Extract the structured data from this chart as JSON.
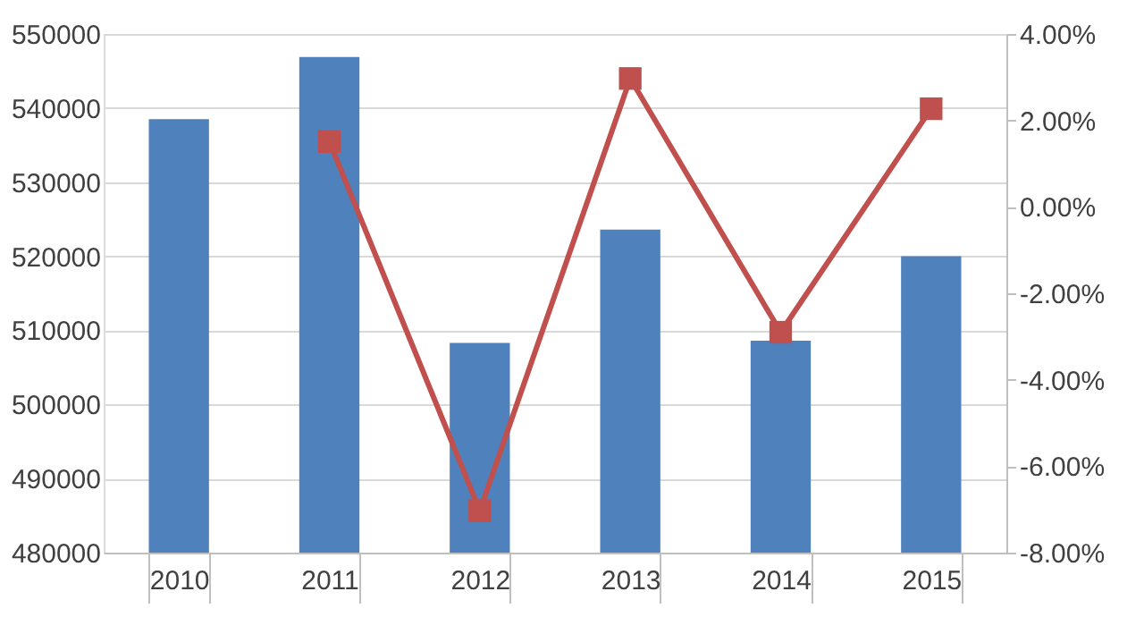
{
  "chart_data": {
    "type": "bar",
    "categories": [
      "2010",
      "2011",
      "2012",
      "2013",
      "2014",
      "2015"
    ],
    "series": [
      {
        "color": "#4f81bd",
        "values": [
          538500,
          546900,
          508300,
          523600,
          508600,
          520000
        ]
      },
      {
        "type": "line",
        "axis": "y2",
        "color": "#c0504d",
        "marker": "square",
        "values": [
          null,
          1.51,
          -7.03,
          2.97,
          -2.9,
          2.27
        ]
      }
    ],
    "ylim": [
      480000,
      550000
    ],
    "yticks": [
      480000,
      490000,
      500000,
      510000,
      520000,
      530000,
      540000,
      550000
    ],
    "y2lim": [
      -8,
      4
    ],
    "y2ticks": [
      {
        "value": -8,
        "label": "-8.00%"
      },
      {
        "value": -6,
        "label": "-6.00%"
      },
      {
        "value": -4,
        "label": "-4.00%"
      },
      {
        "value": -2,
        "label": "-2.00%"
      },
      {
        "value": 0,
        "label": "0.00%"
      },
      {
        "value": 2,
        "label": "2.00%"
      },
      {
        "value": 4,
        "label": "4.00%"
      }
    ],
    "grid": "y"
  }
}
